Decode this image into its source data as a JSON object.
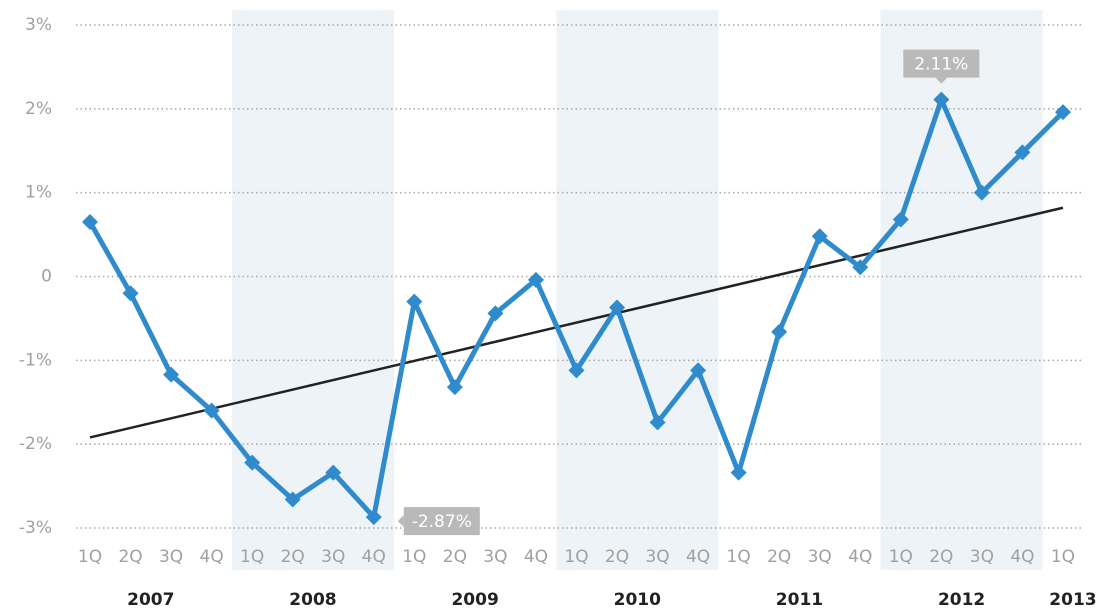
{
  "chart_data": {
    "type": "line",
    "years": [
      {
        "label": "2007",
        "quarters": [
          "1Q",
          "2Q",
          "3Q",
          "4Q"
        ]
      },
      {
        "label": "2008",
        "quarters": [
          "1Q",
          "2Q",
          "3Q",
          "4Q"
        ]
      },
      {
        "label": "2009",
        "quarters": [
          "1Q",
          "2Q",
          "3Q",
          "4Q"
        ]
      },
      {
        "label": "2010",
        "quarters": [
          "1Q",
          "2Q",
          "3Q",
          "4Q"
        ]
      },
      {
        "label": "2011",
        "quarters": [
          "1Q",
          "2Q",
          "3Q",
          "4Q"
        ]
      },
      {
        "label": "2012",
        "quarters": [
          "1Q",
          "2Q",
          "3Q",
          "4Q"
        ]
      },
      {
        "label": "2013",
        "quarters": [
          "1Q"
        ]
      }
    ],
    "values": [
      0.65,
      -0.2,
      -1.17,
      -1.6,
      -2.22,
      -2.66,
      -2.34,
      -2.87,
      -0.3,
      -1.32,
      -0.44,
      -0.04,
      -1.12,
      -0.37,
      -1.74,
      -1.12,
      -2.34,
      -0.66,
      0.48,
      0.11,
      0.68,
      2.11,
      1.0,
      1.48,
      1.96
    ],
    "value_labels": [
      null,
      null,
      null,
      null,
      null,
      null,
      null,
      "-2.87%",
      null,
      null,
      null,
      null,
      null,
      null,
      null,
      null,
      null,
      null,
      null,
      null,
      null,
      "2.11%",
      null,
      null,
      null
    ],
    "color": "#2f8bcb",
    "trend": {
      "start": -1.92,
      "end": 0.82,
      "color": "#222222"
    },
    "ylim": [
      -3,
      3
    ],
    "yticks": [
      {
        "value": -3,
        "label": "-3%"
      },
      {
        "value": -2,
        "label": "-2%"
      },
      {
        "value": -1,
        "label": "-1%"
      },
      0,
      {
        "value": 1,
        "label": "1%"
      },
      {
        "value": 2,
        "label": "2%"
      },
      {
        "value": 3,
        "label": "3%"
      }
    ],
    "grid": true
  }
}
